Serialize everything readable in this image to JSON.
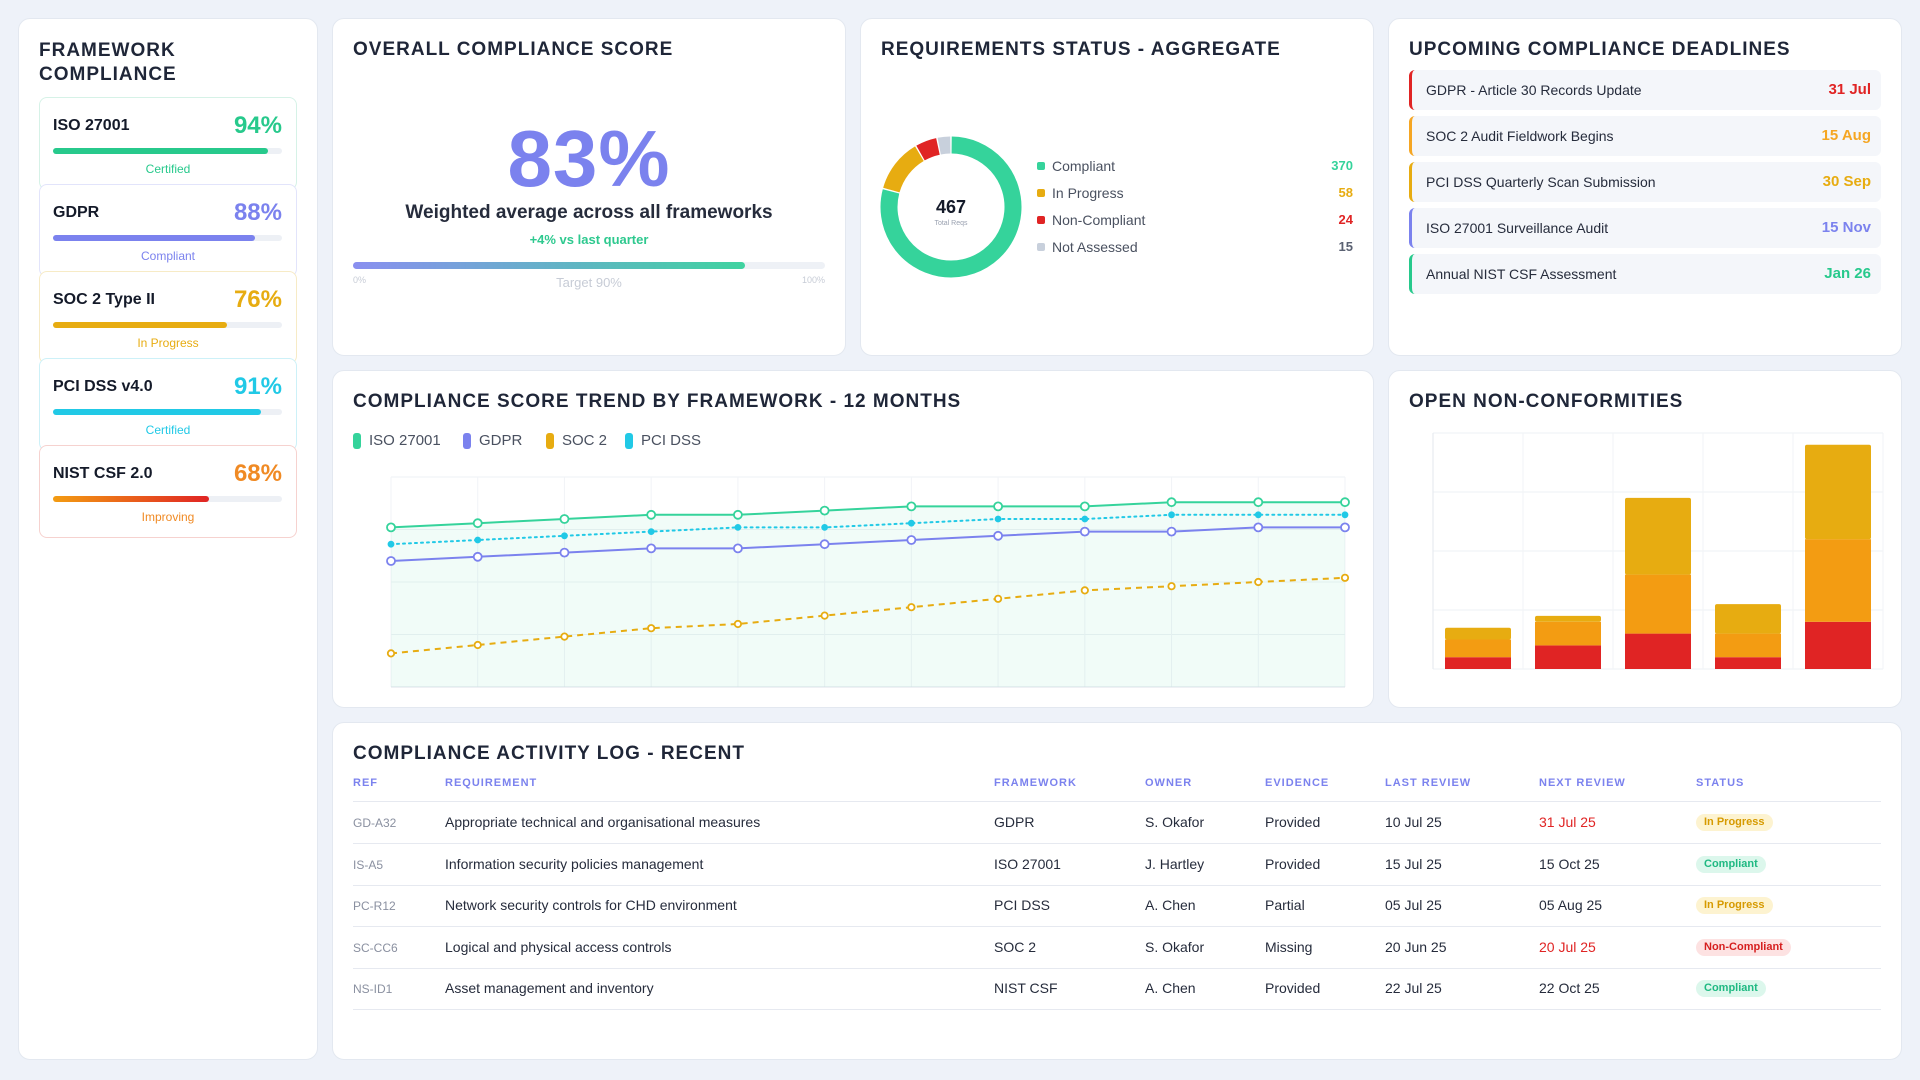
{
  "colors": {
    "green": "#35d39b",
    "purple": "#7b82ee",
    "amber": "#e7ac11",
    "cyan": "#21c9e6",
    "red": "#e02424",
    "orange": "#f39c12",
    "grey": "#c8d0dc"
  },
  "frameworks": {
    "title": "FRAMEWORK COMPLIANCE",
    "items": [
      {
        "name": "ISO 27001",
        "pct_label": "94%",
        "pct": 94,
        "status": "Certified",
        "color": "#27c98c",
        "border": "#d6f2e7",
        "status_color": "#27c98c"
      },
      {
        "name": "GDPR",
        "pct_label": "88%",
        "pct": 88,
        "status": "Compliant",
        "color": "#7b82ee",
        "border": "#e2e4fb",
        "status_color": "#7b82ee"
      },
      {
        "name": "SOC 2 Type II",
        "pct_label": "76%",
        "pct": 76,
        "status": "In Progress",
        "color": "#e7ac11",
        "border": "#f7ebc6",
        "status_color": "#e7ac11"
      },
      {
        "name": "PCI DSS v4.0",
        "pct_label": "91%",
        "pct": 91,
        "status": "Certified",
        "color": "#21c9e6",
        "border": "#cdf1f8",
        "status_color": "#21c9e6"
      },
      {
        "name": "NIST CSF 2.0",
        "pct_label": "68%",
        "pct": 68,
        "status": "Improving",
        "color": "#f08a24",
        "border": "#f6d2cf",
        "status_color": "#f08a24"
      }
    ]
  },
  "overall": {
    "title": "OVERALL COMPLIANCE SCORE",
    "score": "83%",
    "score_value": 83,
    "subtitle": "Weighted average across all frameworks",
    "delta": "+4% vs last quarter",
    "min_label": "0%",
    "max_label": "100%",
    "target_label": "Target 90%"
  },
  "requirements": {
    "title": "REQUIREMENTS STATUS - AGGREGATE",
    "total": "467",
    "total_label": "Total Reqs",
    "items": [
      {
        "label": "Compliant",
        "value": "370",
        "num": 370,
        "color": "#35d39b"
      },
      {
        "label": "In Progress",
        "value": "58",
        "num": 58,
        "color": "#e7ac11"
      },
      {
        "label": "Non-Compliant",
        "value": "24",
        "num": 24,
        "color": "#e02424"
      },
      {
        "label": "Not Assessed",
        "value": "15",
        "num": 15,
        "color": "#c8d0dc"
      }
    ]
  },
  "deadlines": {
    "title": "UPCOMING COMPLIANCE DEADLINES",
    "items": [
      {
        "name": "GDPR - Article 30 Records Update",
        "date": "31 Jul",
        "color": "#e02424"
      },
      {
        "name": "SOC 2 Audit Fieldwork Begins",
        "date": "15 Aug",
        "color": "#f5a623"
      },
      {
        "name": "PCI DSS Quarterly Scan Submission",
        "date": "30 Sep",
        "color": "#e7ac11"
      },
      {
        "name": "ISO 27001 Surveillance Audit",
        "date": "15 Nov",
        "color": "#7b82ee"
      },
      {
        "name": "Annual NIST CSF Assessment",
        "date": "Jan 26",
        "color": "#27c98c"
      }
    ]
  },
  "trend": {
    "title": "COMPLIANCE SCORE TREND BY FRAMEWORK - 12 MONTHS",
    "legend": [
      "ISO 27001",
      "GDPR",
      "SOC 2",
      "PCI DSS"
    ]
  },
  "nonconformities": {
    "title": "OPEN NON-CONFORMITIES"
  },
  "chart_data": [
    {
      "type": "line",
      "title": "COMPLIANCE SCORE TREND BY FRAMEWORK - 12 MONTHS",
      "x": [
        1,
        2,
        3,
        4,
        5,
        6,
        7,
        8,
        9,
        10,
        11,
        12
      ],
      "ylim": [
        50,
        100
      ],
      "grid": true,
      "legend_position": "top-left",
      "series": [
        {
          "name": "ISO 27001",
          "color": "#35d39b",
          "style": "solid",
          "fill": true,
          "values": [
            88,
            89,
            90,
            91,
            91,
            92,
            93,
            93,
            93,
            94,
            94,
            94
          ]
        },
        {
          "name": "GDPR",
          "color": "#7b82ee",
          "style": "solid",
          "values": [
            80,
            81,
            82,
            83,
            83,
            84,
            85,
            86,
            87,
            87,
            88,
            88
          ]
        },
        {
          "name": "SOC 2",
          "color": "#e7ac11",
          "style": "dashed",
          "values": [
            58,
            60,
            62,
            64,
            65,
            67,
            69,
            71,
            73,
            74,
            75,
            76
          ]
        },
        {
          "name": "PCI DSS",
          "color": "#21c9e6",
          "style": "dotted",
          "values": [
            84,
            85,
            86,
            87,
            88,
            88,
            89,
            90,
            90,
            91,
            91,
            91
          ]
        }
      ]
    },
    {
      "type": "bar",
      "stacked": true,
      "title": "OPEN NON-CONFORMITIES",
      "categories": [
        "",
        "",
        "",
        "",
        ""
      ],
      "ylim": [
        0,
        20
      ],
      "grid": true,
      "series": [
        {
          "color": "#e02424",
          "values": [
            1,
            2,
            3,
            1,
            4
          ]
        },
        {
          "color": "#f39c12",
          "values": [
            1.5,
            2,
            5,
            2,
            7
          ]
        },
        {
          "color": "#e7ac11",
          "values": [
            1,
            0.5,
            6.5,
            2.5,
            8
          ]
        }
      ]
    }
  ],
  "log": {
    "title": "COMPLIANCE ACTIVITY LOG - RECENT",
    "headers": [
      "REF",
      "REQUIREMENT",
      "FRAMEWORK",
      "OWNER",
      "EVIDENCE",
      "LAST REVIEW",
      "NEXT REVIEW",
      "STATUS"
    ],
    "rows": [
      {
        "ref": "GD-A32",
        "requirement": "Appropriate technical and organisational measures",
        "framework": "GDPR",
        "owner": "S. Okafor",
        "evidence": "Provided",
        "last": "10 Jul 25",
        "next": "31 Jul 25",
        "next_overdue": true,
        "status": "In Progress",
        "status_kind": "progress"
      },
      {
        "ref": "IS-A5",
        "requirement": "Information security policies management",
        "framework": "ISO 27001",
        "owner": "J. Hartley",
        "evidence": "Provided",
        "last": "15 Jul 25",
        "next": "15 Oct 25",
        "next_overdue": false,
        "status": "Compliant",
        "status_kind": "ok"
      },
      {
        "ref": "PC-R12",
        "requirement": "Network security controls for CHD environment",
        "framework": "PCI DSS",
        "owner": "A. Chen",
        "evidence": "Partial",
        "last": "05 Jul 25",
        "next": "05 Aug 25",
        "next_overdue": false,
        "status": "In Progress",
        "status_kind": "progress"
      },
      {
        "ref": "SC-CC6",
        "requirement": "Logical and physical access controls",
        "framework": "SOC 2",
        "owner": "S. Okafor",
        "evidence": "Missing",
        "last": "20 Jun 25",
        "next": "20 Jul 25",
        "next_overdue": true,
        "status": "Non-Compliant",
        "status_kind": "bad"
      },
      {
        "ref": "NS-ID1",
        "requirement": "Asset management and inventory",
        "framework": "NIST CSF",
        "owner": "A. Chen",
        "evidence": "Provided",
        "last": "22 Jul 25",
        "next": "22 Oct 25",
        "next_overdue": false,
        "status": "Compliant",
        "status_kind": "ok"
      }
    ]
  }
}
